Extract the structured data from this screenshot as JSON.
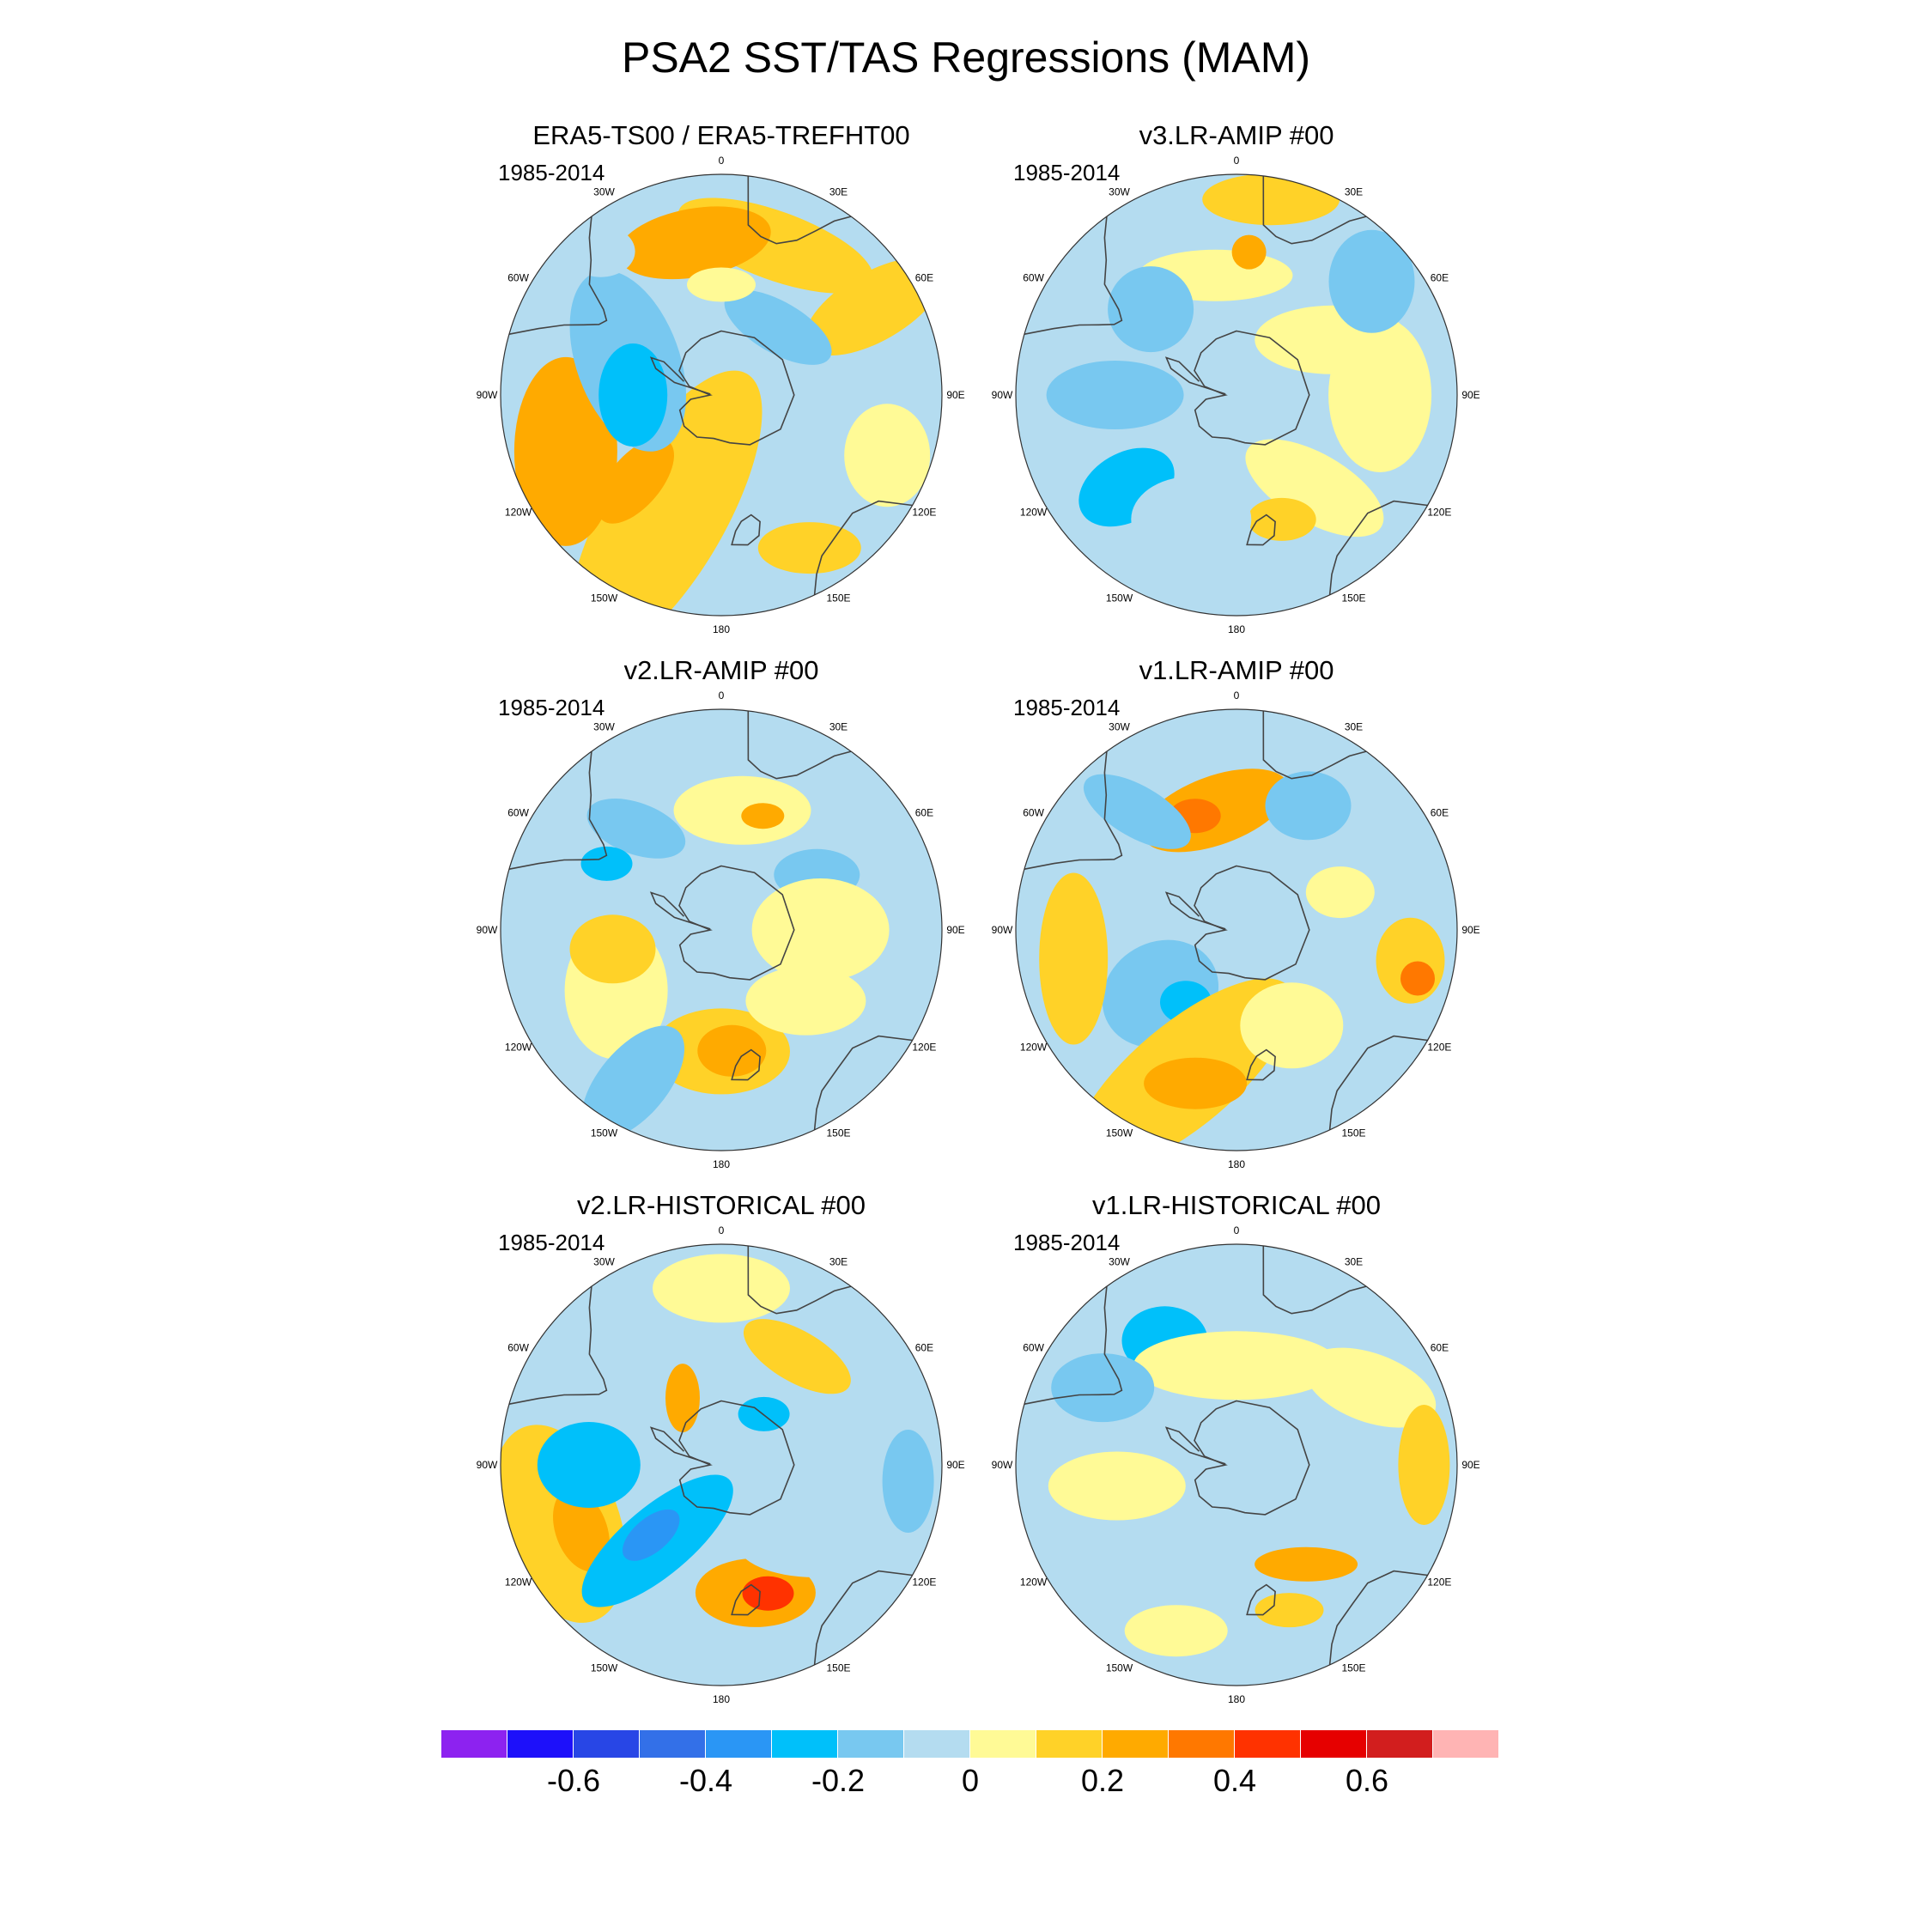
{
  "title": "PSA2 SST/TAS Regressions (MAM)",
  "panels": [
    {
      "id": "era5",
      "title": "ERA5-TS00 / ERA5-TREFHT00",
      "period": "1985-2014"
    },
    {
      "id": "v3amip",
      "title": "v3.LR-AMIP  #00",
      "period": "1985-2014"
    },
    {
      "id": "v2amip",
      "title": "v2.LR-AMIP  #00",
      "period": "1985-2014"
    },
    {
      "id": "v1amip",
      "title": "v1.LR-AMIP  #00",
      "period": "1985-2014"
    },
    {
      "id": "v2hist",
      "title": "v2.LR-HISTORICAL  #00",
      "period": "1985-2014"
    },
    {
      "id": "v1hist",
      "title": "v1.LR-HISTORICAL  #00",
      "period": "1985-2014"
    }
  ],
  "longitude_labels": {
    "lon_0": "0",
    "lon_30e": "30E",
    "lon_60e": "60E",
    "lon_90e": "90E",
    "lon_120e": "120E",
    "lon_150e": "150E",
    "lon_180": "180",
    "lon_150w": "150W",
    "lon_120w": "120W",
    "lon_90w": "90W",
    "lon_60w": "60W",
    "lon_30w": "30W"
  },
  "colorbar": {
    "colors": [
      "#8d22f0",
      "#1d10fa",
      "#2846e6",
      "#3370e8",
      "#2a96f5",
      "#00c0fa",
      "#78c8f0",
      "#b4dcf0",
      "#fffa96",
      "#ffd228",
      "#ffaa00",
      "#ff7800",
      "#ff3200",
      "#e60000",
      "#d21e1e",
      "#ffb4b4"
    ],
    "tick_labels": [
      "-0.6",
      "-0.4",
      "-0.2",
      "0",
      "0.2",
      "0.4",
      "0.6"
    ],
    "tick_values": [
      -0.6,
      -0.4,
      -0.2,
      0,
      0.2,
      0.4,
      0.6
    ],
    "min": -0.8,
    "max": 0.8
  }
}
